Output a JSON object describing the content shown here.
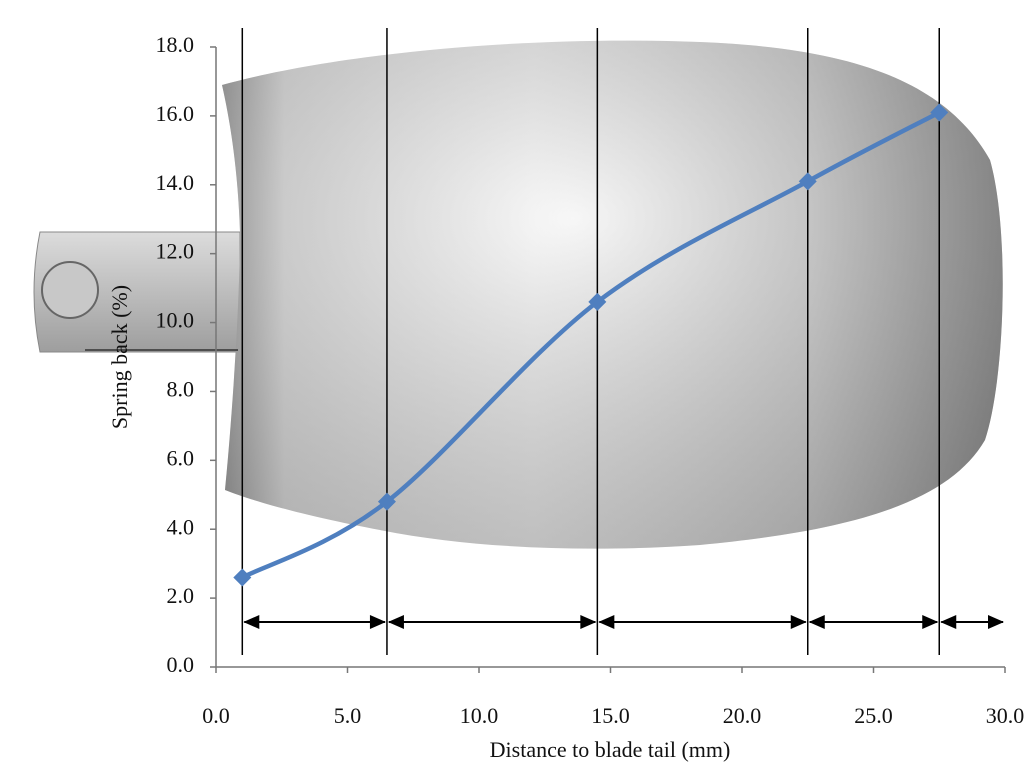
{
  "chart_data": {
    "type": "line",
    "x_label": "Distance to blade tail (mm)",
    "y_label": "Spring back (%)",
    "x": [
      1.0,
      6.5,
      14.5,
      22.5,
      27.5
    ],
    "series": [
      {
        "color": "#4f7fbf",
        "values": [
          2.6,
          4.8,
          10.6,
          14.1,
          16.1
        ]
      }
    ],
    "xlim": [
      0,
      30
    ],
    "ylim": [
      0,
      18
    ],
    "xticks": [
      {
        "value": 0,
        "label": "0.0"
      },
      {
        "value": 5,
        "label": "5.0"
      },
      {
        "value": 10,
        "label": "10.0"
      },
      {
        "value": 15,
        "label": "15.0"
      },
      {
        "value": 20,
        "label": "20.0"
      },
      {
        "value": 25,
        "label": "25.0"
      },
      {
        "value": 30,
        "label": "30.0"
      }
    ],
    "yticks": [
      {
        "value": 0,
        "label": "0.0"
      },
      {
        "value": 2,
        "label": "2.0"
      },
      {
        "value": 4,
        "label": "4.0"
      },
      {
        "value": 6,
        "label": "6.0"
      },
      {
        "value": 8,
        "label": "8.0"
      },
      {
        "value": 10,
        "label": "10.0"
      },
      {
        "value": 12,
        "label": "12.0"
      },
      {
        "value": 14,
        "label": "14.0"
      },
      {
        "value": 16,
        "label": "16.0"
      },
      {
        "value": 18,
        "label": "18.0"
      }
    ],
    "smooth": true
  }
}
